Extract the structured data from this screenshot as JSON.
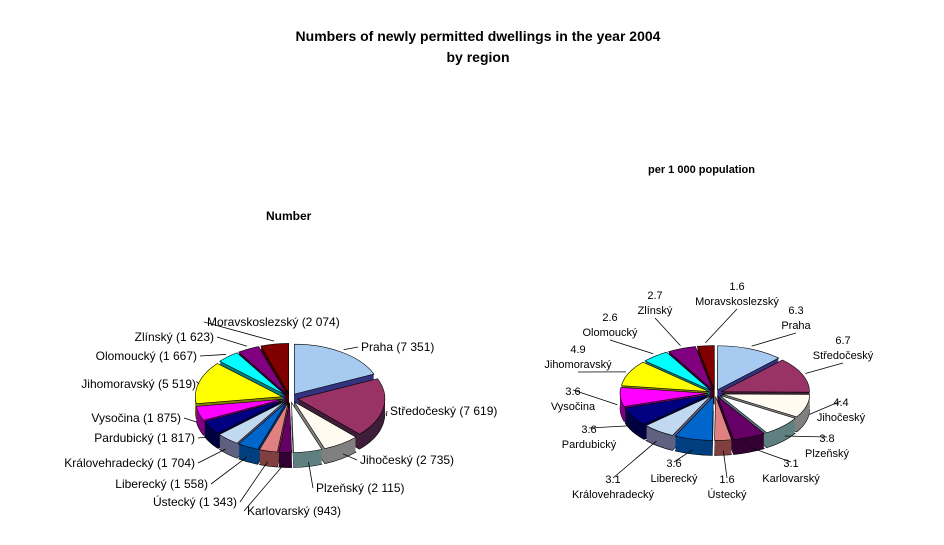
{
  "chart_data": [
    {
      "type": "pie",
      "title": "Numbers of newly permitted dwellings in the year 2004",
      "subtitle": "by region",
      "chart_title": "Number",
      "categories": [
        "Praha",
        "Středočeský",
        "Jihočeský",
        "Plzeňský",
        "Karlovarský",
        "Ústecký",
        "Liberecký",
        "Královehradecký",
        "Pardubický",
        "Vysočina",
        "Jihomoravský",
        "Olomoucký",
        "Zlínský",
        "Moravskoslezský"
      ],
      "values": [
        7351,
        7619,
        2735,
        2115,
        943,
        1343,
        1558,
        1704,
        1817,
        1875,
        5519,
        1667,
        1623,
        2074
      ],
      "data_labels": [
        "Praha (7 351)",
        "Středočeský (7 619)",
        "Jihočeský (2 735)",
        "Plzeňský (2 115)",
        "Karlovarský (943)",
        "Ústecký (1 343)",
        "Liberecký (1 558)",
        "Královehradecký (1 704)",
        "Pardubický (1 817)",
        "Vysočina (1 875)",
        "Jihomoravský (5 519)",
        "Olomoucký (1 667)",
        "Zlínský (1 623)",
        "Moravskoslezský (2 074)"
      ]
    },
    {
      "type": "pie",
      "chart_title": "per 1 000 population",
      "categories": [
        "Praha",
        "Středočeský",
        "Jihočeský",
        "Plzeňský",
        "Karlovarský",
        "Ústecký",
        "Liberecký",
        "Královehradecký",
        "Pardubický",
        "Vysočina",
        "Jihomoravský",
        "Olomoucký",
        "Zlínský",
        "Moravskoslezský"
      ],
      "values": [
        6.3,
        6.7,
        4.4,
        3.8,
        3.1,
        1.6,
        3.6,
        3.1,
        3.6,
        3.6,
        4.9,
        2.6,
        2.7,
        1.6
      ],
      "value_labels": [
        "6.3",
        "6.7",
        "4.4",
        "3.8",
        "3.1",
        "1.6",
        "3.6",
        "3.1",
        "3.6",
        "3.6",
        "4.9",
        "2.6",
        "2.7",
        "1.6"
      ]
    }
  ],
  "colors": [
    "#A6CAF0",
    "#993366",
    "#FFFBF0",
    "#FFFFFF",
    "#660066",
    "#E08080",
    "#0066CC",
    "#C0D8F0",
    "#000080",
    "#FF00FF",
    "#FFFF00",
    "#00FFFF",
    "#800080",
    "#800000"
  ],
  "side_colors": [
    "#333380",
    "#3F1F38",
    "#808080",
    "#5F8080",
    "#330033",
    "#804040",
    "#003F80",
    "#606080",
    "#00003F",
    "#800080",
    "#808000",
    "#008080",
    "#400040",
    "#400000"
  ]
}
